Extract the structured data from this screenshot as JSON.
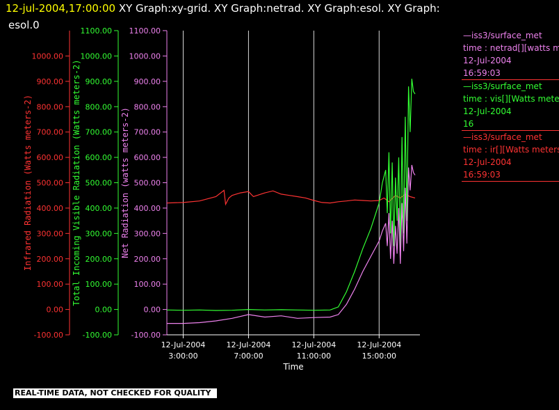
{
  "header": {
    "datetime": "12-jul-2004,17:00:00",
    "titles_line1": " XY Graph:xy-grid.  XY Graph:netrad.  XY Graph:esol.  XY Graph:",
    "titles_line2": "esol.0"
  },
  "legend": [
    {
      "title": "—iss3/surface_met",
      "line2": "time : netrad[][watts me",
      "line3": "12-Jul-2004",
      "line4": "16:59:03",
      "color": "#ee82ee"
    },
    {
      "title": "—iss3/surface_met",
      "line2": "time : vis[][Watts meter",
      "line3": "12-Jul-2004",
      "line4": "16",
      "color": "#33ff33"
    },
    {
      "title": "—iss3/surface_met",
      "line2": "time : ir[][Watts meters",
      "line3": "12-Jul-2004",
      "line4": "16:59:03",
      "color": "#ff3333"
    }
  ],
  "footer": "REAL-TIME DATA, NOT CHECKED FOR QUALITY",
  "chart_data": {
    "type": "line",
    "xlabel": "Time",
    "x_range_hours": [
      2.0,
      17.5
    ],
    "x_ticks": [
      {
        "hour": 3,
        "date": "12-Jul-2004",
        "time": "3:00:00"
      },
      {
        "hour": 7,
        "date": "12-Jul-2004",
        "time": "7:00:00"
      },
      {
        "hour": 11,
        "date": "12-Jul-2004",
        "time": "11:00:00"
      },
      {
        "hour": 15,
        "date": "12-Jul-2004",
        "time": "15:00:00"
      }
    ],
    "grid": "vertical lines at x ticks",
    "y_axes": [
      {
        "label": "Infrared Radiation (Watts meters-2)",
        "color": "#ff3333",
        "range": [
          -100,
          1100
        ],
        "ticks": [
          "-100.00",
          "0.00",
          "100.00",
          "200.00",
          "300.00",
          "400.00",
          "500.00",
          "600.00",
          "700.00",
          "800.00",
          "900.00",
          "1000.00"
        ]
      },
      {
        "label": "Total Incoming Visible Radiation (Watts meters-2)",
        "color": "#33ff33",
        "range": [
          -100,
          1100
        ],
        "ticks": [
          "-100.00",
          "0.00",
          "100.00",
          "200.00",
          "300.00",
          "400.00",
          "500.00",
          "600.00",
          "700.00",
          "800.00",
          "900.00",
          "1000.00",
          "1100.00"
        ]
      },
      {
        "label": "Net Radiation (watts meters-2)",
        "color": "#ee82ee",
        "range": [
          -100,
          1100
        ],
        "ticks": [
          "-100.00",
          "0.00",
          "100.00",
          "200.00",
          "300.00",
          "400.00",
          "500.00",
          "600.00",
          "700.00",
          "800.00",
          "900.00",
          "1000.00",
          "1100.00"
        ]
      }
    ],
    "series": [
      {
        "name": "ir",
        "color": "#ff3333",
        "x": [
          2.0,
          3.0,
          4.0,
          5.0,
          5.5,
          5.6,
          5.8,
          6.0,
          6.5,
          7.0,
          7.3,
          8.0,
          8.5,
          9.0,
          9.5,
          10.0,
          10.5,
          11.0,
          11.5,
          12.0,
          12.5,
          13.0,
          13.5,
          14.0,
          14.5,
          15.0,
          15.3,
          15.6,
          16.0,
          16.3,
          16.6,
          16.9,
          17.2
        ],
        "y": [
          420,
          422,
          428,
          445,
          470,
          415,
          440,
          450,
          460,
          465,
          445,
          460,
          468,
          455,
          450,
          445,
          440,
          430,
          422,
          420,
          425,
          428,
          432,
          430,
          428,
          430,
          440,
          425,
          450,
          440,
          455,
          445,
          440
        ]
      },
      {
        "name": "vis",
        "color": "#33ff33",
        "x": [
          2.0,
          3.0,
          4.0,
          5.0,
          6.0,
          7.0,
          8.0,
          9.0,
          10.0,
          11.0,
          12.0,
          12.5,
          13.0,
          13.5,
          14.0,
          14.5,
          15.0,
          15.2,
          15.4,
          15.5,
          15.6,
          15.7,
          15.8,
          15.9,
          16.0,
          16.1,
          16.2,
          16.3,
          16.4,
          16.5,
          16.6,
          16.7,
          16.8,
          16.9,
          17.0,
          17.1,
          17.2
        ],
        "y": [
          -2,
          -3,
          -2,
          -4,
          -3,
          0,
          -2,
          -1,
          -2,
          -3,
          -2,
          10,
          70,
          150,
          240,
          320,
          420,
          500,
          550,
          380,
          620,
          300,
          580,
          250,
          520,
          350,
          600,
          240,
          680,
          300,
          760,
          350,
          880,
          700,
          910,
          860,
          850
        ]
      },
      {
        "name": "netrad",
        "color": "#ee82ee",
        "x": [
          2.0,
          3.0,
          4.0,
          5.0,
          6.0,
          7.0,
          8.0,
          9.0,
          10.0,
          11.0,
          12.0,
          12.5,
          13.0,
          13.5,
          14.0,
          14.5,
          15.0,
          15.2,
          15.4,
          15.5,
          15.6,
          15.7,
          15.8,
          15.9,
          16.0,
          16.1,
          16.2,
          16.3,
          16.4,
          16.5,
          16.6,
          16.7,
          16.8,
          16.9,
          17.0,
          17.1,
          17.2
        ],
        "y": [
          -55,
          -55,
          -52,
          -45,
          -35,
          -20,
          -30,
          -25,
          -35,
          -32,
          -30,
          -20,
          20,
          80,
          150,
          210,
          270,
          310,
          340,
          250,
          380,
          200,
          350,
          180,
          330,
          220,
          400,
          180,
          420,
          230,
          480,
          260,
          560,
          470,
          570,
          540,
          530
        ]
      }
    ]
  }
}
